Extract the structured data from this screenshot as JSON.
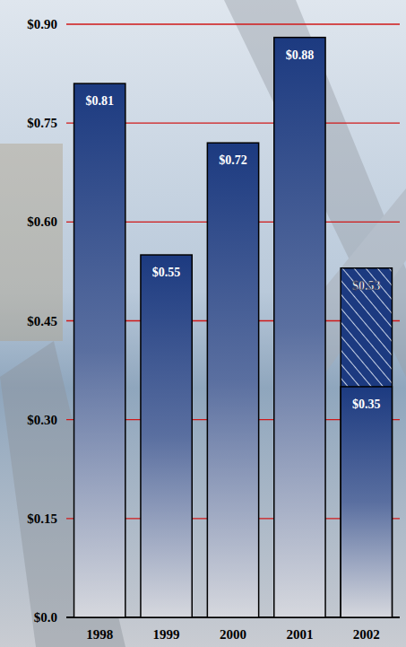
{
  "chart_data": {
    "type": "bar",
    "categories": [
      "1998",
      "1999",
      "2000",
      "2001",
      "2002"
    ],
    "series": [
      {
        "color": "#1c3a80",
        "values": [
          0.81,
          0.55,
          0.72,
          0.88,
          0.53
        ],
        "value_labels": [
          "$0.81",
          "$0.55",
          "$0.72",
          "$0.88",
          "$0.53"
        ]
      },
      {
        "color": "#1c3a80",
        "values": [
          null,
          null,
          null,
          null,
          0.35
        ],
        "value_labels": [
          null,
          null,
          null,
          null,
          "$0.35"
        ]
      }
    ],
    "ylim": [
      0,
      0.9
    ],
    "yticks": [
      {
        "value": 0,
        "label": "$0.0"
      },
      {
        "value": 0.15,
        "label": "$0.15"
      },
      {
        "value": 0.3,
        "label": "$0.30"
      },
      {
        "value": 0.45,
        "label": "$0.45"
      },
      {
        "value": 0.6,
        "label": "$0.60"
      },
      {
        "value": 0.75,
        "label": "$0.75"
      },
      {
        "value": 0.9,
        "label": "$0.90"
      }
    ],
    "grid": true,
    "data_labels": true,
    "stacked": false
  }
}
